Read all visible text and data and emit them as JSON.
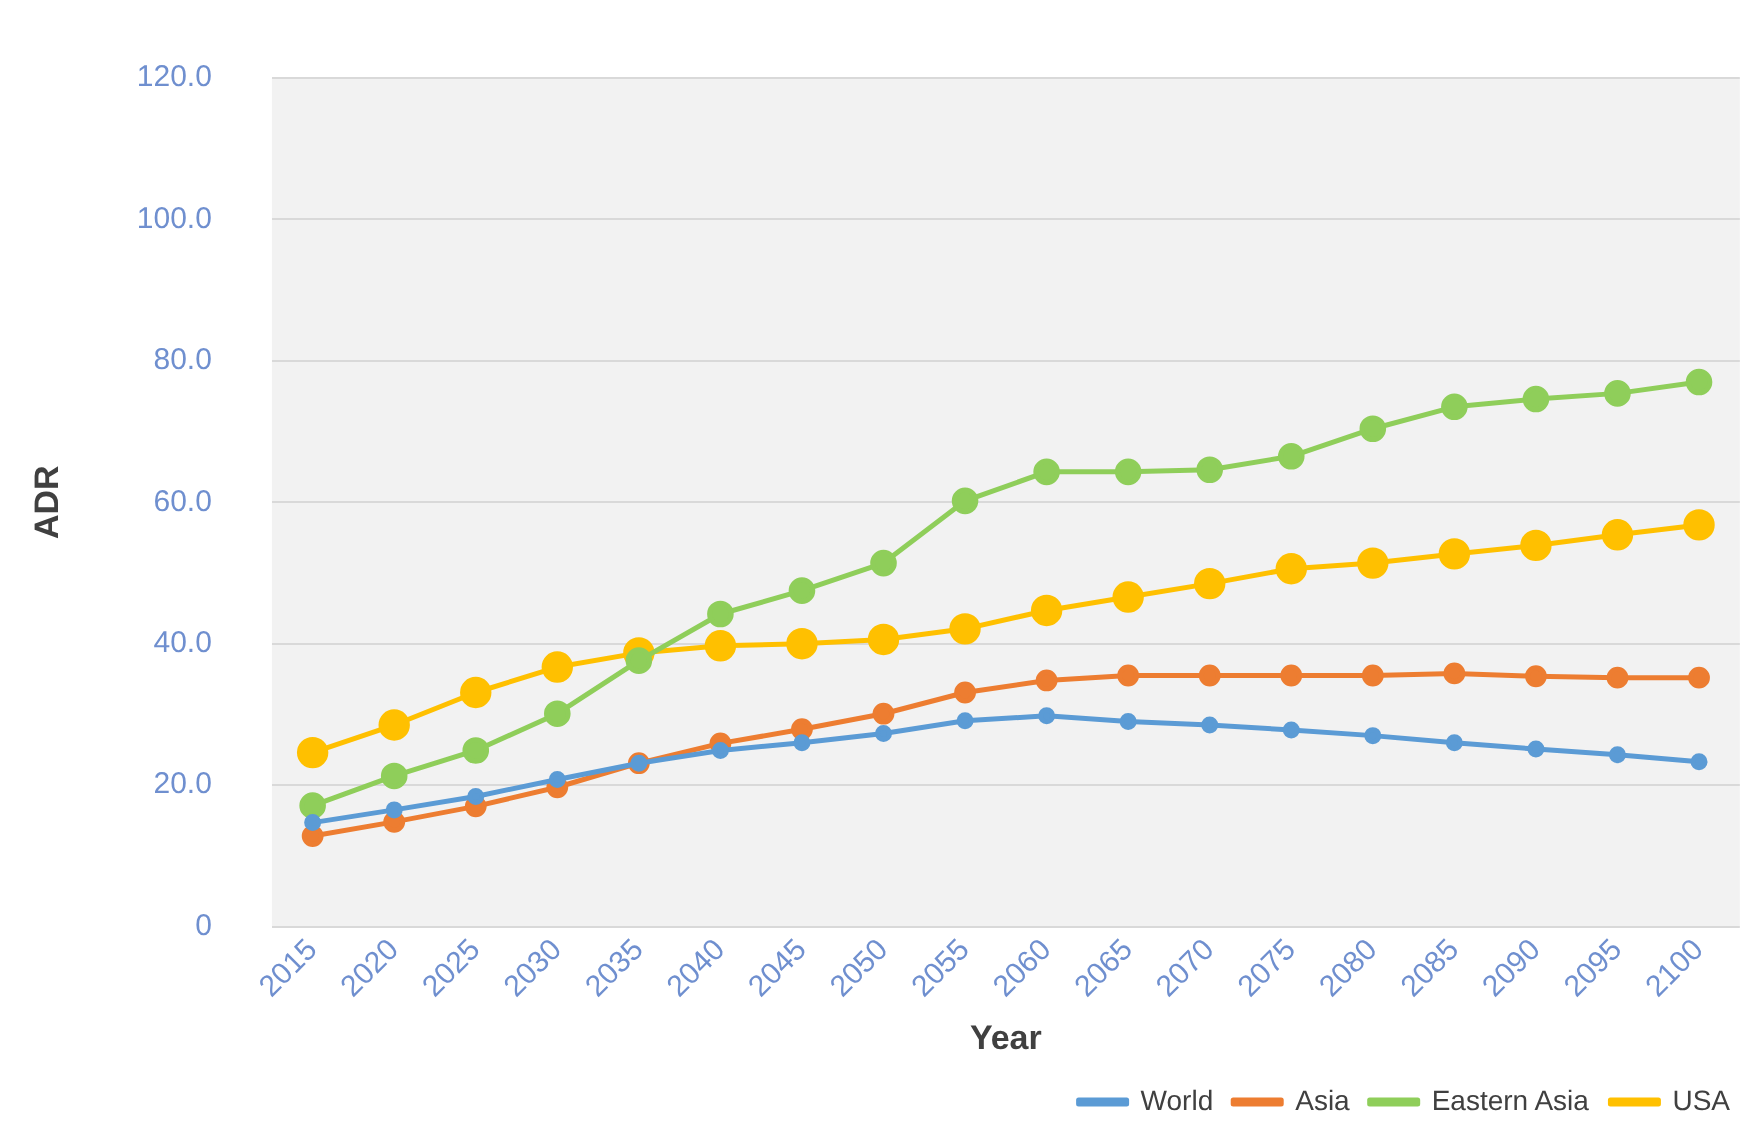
{
  "chart_data": {
    "type": "line",
    "xlabel": "Year",
    "ylabel": "ADR",
    "categories": [
      "2015",
      "2020",
      "2025",
      "2030",
      "2035",
      "2040",
      "2045",
      "2050",
      "2055",
      "2060",
      "2065",
      "2070",
      "2075",
      "2080",
      "2085",
      "2090",
      "2095",
      "2100"
    ],
    "series": [
      {
        "name": "World",
        "color": "#5b9bd5",
        "values": [
          14.7,
          16.5,
          18.4,
          20.8,
          23.1,
          24.9,
          26.0,
          27.3,
          29.1,
          29.8,
          29.0,
          28.5,
          27.8,
          27.0,
          26.0,
          25.1,
          24.3,
          23.3
        ]
      },
      {
        "name": "Asia",
        "color": "#ed7d31",
        "values": [
          12.8,
          14.8,
          17.0,
          19.7,
          23.1,
          25.9,
          27.9,
          30.1,
          33.1,
          34.8,
          35.5,
          35.5,
          35.5,
          35.5,
          35.8,
          35.4,
          35.2,
          35.2
        ]
      },
      {
        "name": "Eastern Asia",
        "color": "#8fce5a",
        "values": [
          17.1,
          21.3,
          24.9,
          30.1,
          37.6,
          44.2,
          47.5,
          51.4,
          60.2,
          64.3,
          64.3,
          64.6,
          66.5,
          70.4,
          73.5,
          74.6,
          75.4,
          77.0
        ]
      },
      {
        "name": "USA",
        "color": "#ffc000",
        "values": [
          24.6,
          28.5,
          33.1,
          36.7,
          38.7,
          39.7,
          40.0,
          40.6,
          42.1,
          44.7,
          46.6,
          48.5,
          50.6,
          51.4,
          52.7,
          53.9,
          55.4,
          56.8
        ]
      }
    ],
    "ylim": [
      0,
      120
    ],
    "yticks": [
      0,
      {
        "value": 20,
        "label": "20.0"
      },
      {
        "value": 40,
        "label": "40.0"
      },
      {
        "value": 60,
        "label": "60.0"
      },
      {
        "value": 80,
        "label": "80.0"
      },
      {
        "value": 100,
        "label": "100.0"
      },
      {
        "value": 120,
        "label": "120.0"
      }
    ],
    "grid": "y",
    "legend": "bottom right",
    "marker": "circle",
    "line_style": "solid"
  }
}
